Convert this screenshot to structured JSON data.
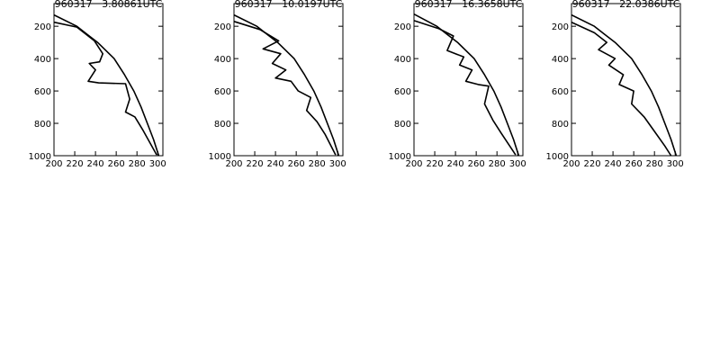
{
  "chart_data": [
    {
      "type": "line",
      "title": "960317   3.80861UTC",
      "xlim": [
        200,
        305
      ],
      "ylim": [
        60,
        1000
      ],
      "y_inverted": true,
      "xticks": [
        200,
        220,
        240,
        260,
        280,
        300
      ],
      "yticks": [
        200,
        400,
        600,
        800,
        1000
      ],
      "series": [
        {
          "color": "#000000",
          "x": [
            200,
            222,
            232,
            242,
            258,
            268,
            277,
            284,
            290,
            296,
            301
          ],
          "values": [
            130,
            200,
            250,
            300,
            400,
            500,
            600,
            700,
            800,
            900,
            1000
          ]
        },
        {
          "color": "#000000",
          "x": [
            200,
            222,
            239,
            247,
            244,
            234,
            240,
            233,
            243,
            269,
            273,
            269,
            278,
            286,
            299
          ],
          "values": [
            175,
            205,
            290,
            370,
            420,
            430,
            470,
            540,
            550,
            555,
            650,
            730,
            760,
            845,
            995
          ]
        }
      ]
    },
    {
      "type": "line",
      "title": "960317   10.0197UTC",
      "xlim": [
        200,
        305
      ],
      "ylim": [
        60,
        1000
      ],
      "y_inverted": true,
      "xticks": [
        200,
        220,
        240,
        260,
        280,
        300
      ],
      "yticks": [
        200,
        400,
        600,
        800,
        1000
      ],
      "series": [
        {
          "color": "#000000",
          "x": [
            200,
            222,
            232,
            242,
            258,
            268,
            277,
            284,
            290,
            296,
            301
          ],
          "values": [
            130,
            200,
            250,
            300,
            400,
            500,
            600,
            700,
            800,
            900,
            1000
          ]
        },
        {
          "color": "#000000",
          "x": [
            200,
            225,
            243,
            228,
            245,
            237,
            250,
            240,
            255,
            262,
            274,
            270,
            280,
            288,
            298
          ],
          "values": [
            170,
            220,
            290,
            340,
            370,
            430,
            470,
            520,
            540,
            600,
            640,
            720,
            790,
            870,
            995
          ]
        }
      ]
    },
    {
      "type": "line",
      "title": "960317   16.3658UTC",
      "xlim": [
        200,
        305
      ],
      "ylim": [
        60,
        1000
      ],
      "y_inverted": true,
      "xticks": [
        200,
        220,
        240,
        260,
        280,
        300
      ],
      "yticks": [
        200,
        400,
        600,
        800,
        1000
      ],
      "series": [
        {
          "color": "#000000",
          "x": [
            200,
            222,
            232,
            242,
            258,
            268,
            277,
            284,
            290,
            296,
            301
          ],
          "values": [
            125,
            200,
            250,
            300,
            400,
            500,
            600,
            700,
            800,
            900,
            1000
          ]
        },
        {
          "color": "#000000",
          "x": [
            200,
            224,
            238,
            232,
            248,
            244,
            256,
            250,
            262,
            272,
            268,
            276,
            284,
            298
          ],
          "values": [
            165,
            215,
            260,
            350,
            390,
            440,
            470,
            540,
            560,
            570,
            680,
            780,
            860,
            995
          ]
        }
      ]
    },
    {
      "type": "line",
      "title": "960317   22.0386UTC",
      "xlim": [
        200,
        305
      ],
      "ylim": [
        60,
        1000
      ],
      "y_inverted": true,
      "xticks": [
        200,
        220,
        240,
        260,
        280,
        300
      ],
      "yticks": [
        200,
        400,
        600,
        800,
        1000
      ],
      "series": [
        {
          "color": "#000000",
          "x": [
            200,
            222,
            232,
            242,
            258,
            268,
            277,
            284,
            290,
            296,
            301
          ],
          "values": [
            130,
            200,
            250,
            300,
            400,
            500,
            600,
            700,
            800,
            900,
            1000
          ]
        },
        {
          "color": "#000000",
          "x": [
            200,
            222,
            234,
            226,
            242,
            236,
            250,
            246,
            260,
            258,
            270,
            280,
            290,
            296
          ],
          "values": [
            175,
            240,
            300,
            345,
            400,
            440,
            500,
            560,
            600,
            680,
            760,
            850,
            940,
            1000
          ]
        }
      ]
    }
  ]
}
